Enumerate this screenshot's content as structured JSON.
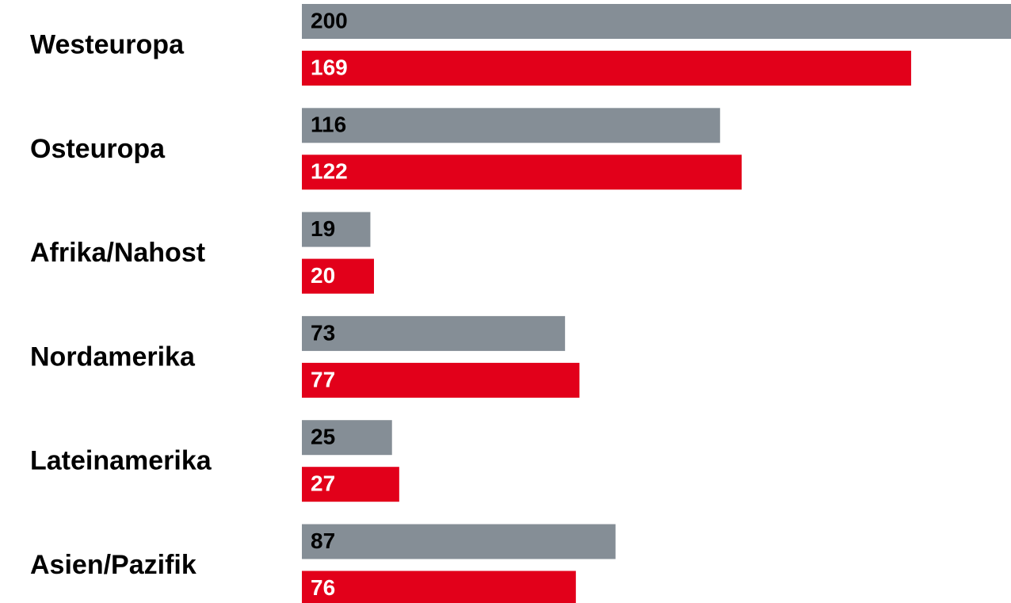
{
  "chart_data": {
    "type": "hbar",
    "categories": [
      "Westeuropa",
      "Osteuropa",
      "Afrika/Nahost",
      "Nordamerika",
      "Lateinamerika",
      "Asien/Pazifik"
    ],
    "series": [
      {
        "color": "#858e96",
        "label_color": "#000000",
        "values": [
          200,
          116,
          19,
          73,
          25,
          87
        ]
      },
      {
        "color": "#e2001a",
        "label_color": "#ffffff",
        "values": [
          169,
          122,
          20,
          77,
          27,
          76
        ]
      }
    ]
  }
}
